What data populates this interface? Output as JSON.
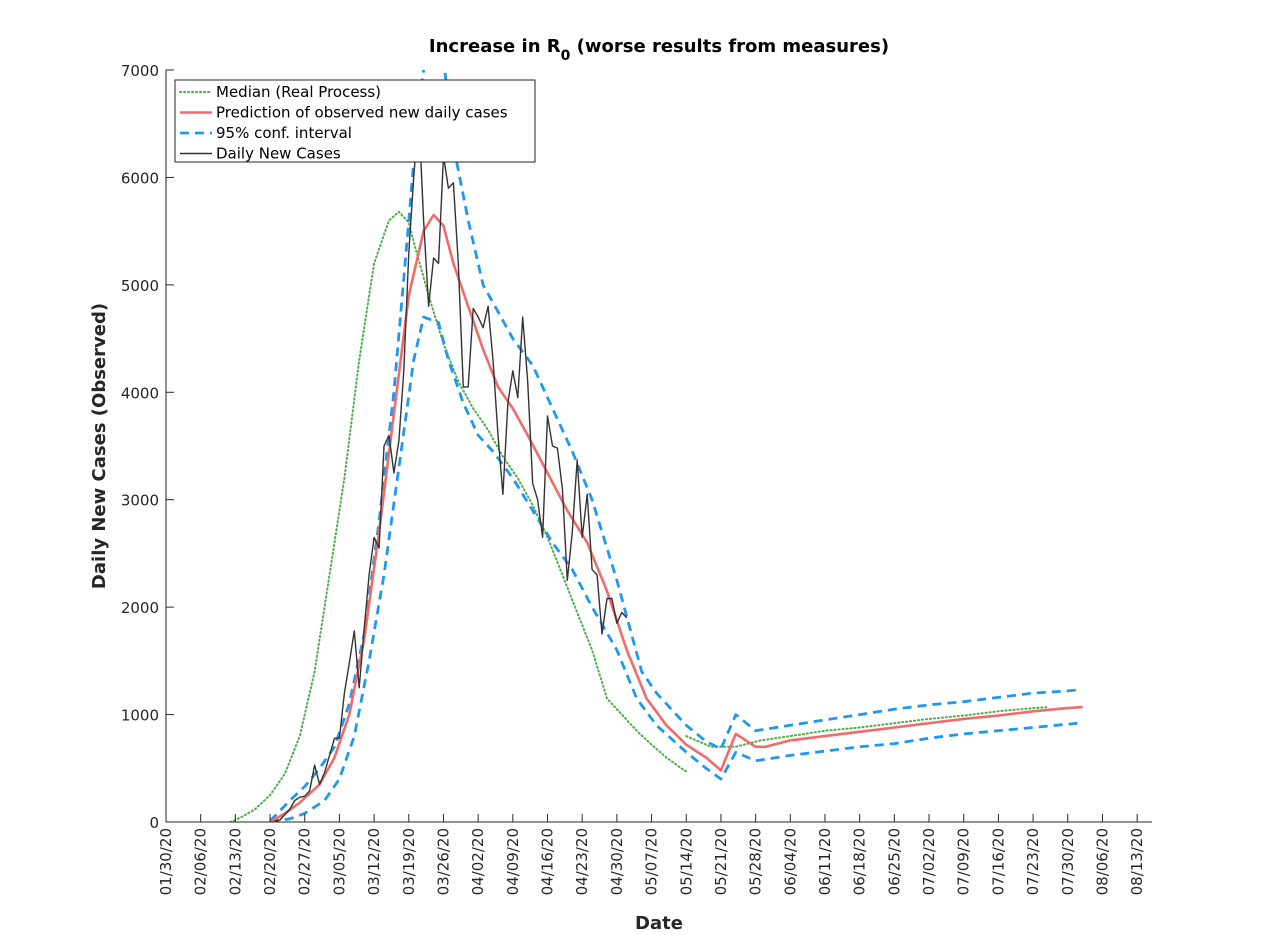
{
  "chart_data": {
    "type": "line",
    "title": {
      "main": "Increase in R",
      "subscript": "0",
      "rest": " (worse results from measures)"
    },
    "xlabel": "Date",
    "ylabel": "Daily New Cases (Observed)",
    "x_axis": {
      "start_date": "01/30/20",
      "end_date": "08/16/20",
      "tick_labels": [
        "01/30/20",
        "02/06/20",
        "02/13/20",
        "02/20/20",
        "02/27/20",
        "03/05/20",
        "03/12/20",
        "03/19/20",
        "03/26/20",
        "04/02/20",
        "04/09/20",
        "04/16/20",
        "04/23/20",
        "04/30/20",
        "05/07/20",
        "05/14/20",
        "05/21/20",
        "05/28/20",
        "06/04/20",
        "06/11/20",
        "06/18/20",
        "06/25/20",
        "07/02/20",
        "07/09/20",
        "07/16/20",
        "07/23/20",
        "07/30/20",
        "08/06/20",
        "08/13/20"
      ]
    },
    "y_axis": {
      "ylim": [
        0,
        7000
      ],
      "ticks": [
        0,
        1000,
        2000,
        3000,
        4000,
        5000,
        6000,
        7000
      ]
    },
    "grid": false,
    "legend": {
      "position": "top-left",
      "entries": [
        {
          "series": "median",
          "label": "Median (Real Process)"
        },
        {
          "series": "prediction",
          "label": "Prediction of observed new daily cases"
        },
        {
          "series": "ci",
          "label": "95% conf. interval"
        },
        {
          "series": "daily",
          "label": "Daily New Cases"
        }
      ]
    },
    "series": [
      {
        "id": "median",
        "name": "Median (Real Process)",
        "color": "#4daf4a",
        "style": "dotted",
        "points": [
          [
            "02/12/20",
            0
          ],
          [
            "02/14/20",
            40
          ],
          [
            "02/17/20",
            120
          ],
          [
            "02/20/20",
            250
          ],
          [
            "02/23/20",
            450
          ],
          [
            "02/26/20",
            800
          ],
          [
            "02/29/20",
            1400
          ],
          [
            "03/03/20",
            2300
          ],
          [
            "03/06/20",
            3200
          ],
          [
            "03/09/20",
            4300
          ],
          [
            "03/12/20",
            5200
          ],
          [
            "03/15/20",
            5600
          ],
          [
            "03/17/20",
            5680
          ],
          [
            "03/19/20",
            5580
          ],
          [
            "03/20/20",
            5400
          ],
          [
            "03/23/20",
            4900
          ],
          [
            "03/26/20",
            4450
          ],
          [
            "03/29/20",
            4100
          ],
          [
            "04/01/20",
            3850
          ],
          [
            "04/04/20",
            3650
          ],
          [
            "04/07/20",
            3400
          ],
          [
            "04/10/20",
            3200
          ],
          [
            "04/13/20",
            2950
          ],
          [
            "04/16/20",
            2650
          ],
          [
            "04/19/20",
            2300
          ],
          [
            "04/22/20",
            1950
          ],
          [
            "04/25/20",
            1600
          ],
          [
            "04/28/20",
            1150
          ],
          [
            "05/01/20",
            1000
          ],
          [
            "05/04/20",
            850
          ],
          [
            "05/07/20",
            720
          ],
          [
            "05/10/20",
            600
          ],
          [
            "05/13/20",
            500
          ],
          [
            "05/14/20",
            470
          ]
        ]
      },
      {
        "id": "median_late",
        "name": "Median (Real Process)",
        "color": "#4daf4a",
        "style": "dotted",
        "points": [
          [
            "05/14/20",
            800
          ],
          [
            "05/19/20",
            700
          ],
          [
            "05/24/20",
            700
          ],
          [
            "05/29/20",
            760
          ],
          [
            "06/04/20",
            800
          ],
          [
            "06/11/20",
            850
          ],
          [
            "06/18/20",
            880
          ],
          [
            "06/25/20",
            920
          ],
          [
            "07/02/20",
            960
          ],
          [
            "07/09/20",
            990
          ],
          [
            "07/16/20",
            1030
          ],
          [
            "07/23/20",
            1060
          ],
          [
            "07/26/20",
            1070
          ]
        ]
      },
      {
        "id": "ci_upper",
        "name": "95% conf. interval",
        "color": "#1f99f0",
        "style": "dashed",
        "points": [
          [
            "02/20/20",
            10
          ],
          [
            "02/24/20",
            200
          ],
          [
            "02/27/20",
            330
          ],
          [
            "03/01/20",
            500
          ],
          [
            "03/04/20",
            700
          ],
          [
            "03/07/20",
            1100
          ],
          [
            "03/10/20",
            1750
          ],
          [
            "03/13/20",
            2800
          ],
          [
            "03/16/20",
            4000
          ],
          [
            "03/19/20",
            5600
          ],
          [
            "03/21/20",
            6700
          ],
          [
            "03/23/20",
            7300
          ],
          [
            "03/26/20",
            7100
          ],
          [
            "03/28/20",
            6300
          ],
          [
            "03/31/20",
            5600
          ],
          [
            "04/03/20",
            5000
          ],
          [
            "04/06/20",
            4750
          ],
          [
            "04/09/20",
            4500
          ],
          [
            "04/13/20",
            4250
          ],
          [
            "04/17/20",
            3850
          ],
          [
            "04/21/20",
            3450
          ],
          [
            "04/25/20",
            3000
          ],
          [
            "04/30/20",
            2250
          ],
          [
            "05/05/20",
            1400
          ],
          [
            "05/08/20",
            1200
          ],
          [
            "05/14/20",
            900
          ],
          [
            "05/18/20",
            750
          ],
          [
            "05/21/20",
            680
          ],
          [
            "05/24/20",
            1000
          ],
          [
            "05/28/20",
            850
          ],
          [
            "06/04/20",
            900
          ],
          [
            "06/11/20",
            950
          ],
          [
            "06/18/20",
            1000
          ],
          [
            "06/25/20",
            1050
          ],
          [
            "07/02/20",
            1090
          ],
          [
            "07/09/20",
            1120
          ],
          [
            "07/16/20",
            1160
          ],
          [
            "07/23/20",
            1200
          ],
          [
            "07/30/20",
            1220
          ],
          [
            "08/01/20",
            1230
          ]
        ]
      },
      {
        "id": "ci_lower",
        "name": "95% conf. interval",
        "color": "#1f99f0",
        "style": "dashed",
        "points": [
          [
            "02/20/20",
            0
          ],
          [
            "02/24/20",
            30
          ],
          [
            "02/27/20",
            80
          ],
          [
            "03/02/20",
            200
          ],
          [
            "03/05/20",
            400
          ],
          [
            "03/08/20",
            800
          ],
          [
            "03/11/20",
            1500
          ],
          [
            "03/14/20",
            2300
          ],
          [
            "03/17/20",
            3300
          ],
          [
            "03/20/20",
            4300
          ],
          [
            "03/22/20",
            4700
          ],
          [
            "03/25/20",
            4650
          ],
          [
            "03/27/20",
            4300
          ],
          [
            "03/30/20",
            3900
          ],
          [
            "04/02/20",
            3600
          ],
          [
            "04/05/20",
            3450
          ],
          [
            "04/09/20",
            3200
          ],
          [
            "04/13/20",
            2900
          ],
          [
            "04/17/20",
            2600
          ],
          [
            "04/21/20",
            2350
          ],
          [
            "04/25/20",
            2000
          ],
          [
            "04/30/20",
            1600
          ],
          [
            "05/04/20",
            1150
          ],
          [
            "05/08/20",
            900
          ],
          [
            "05/14/20",
            650
          ],
          [
            "05/18/20",
            500
          ],
          [
            "05/21/20",
            400
          ],
          [
            "05/24/20",
            650
          ],
          [
            "05/28/20",
            570
          ],
          [
            "06/04/20",
            620
          ],
          [
            "06/11/20",
            660
          ],
          [
            "06/18/20",
            700
          ],
          [
            "06/25/20",
            730
          ],
          [
            "07/02/20",
            780
          ],
          [
            "07/09/20",
            820
          ],
          [
            "07/16/20",
            850
          ],
          [
            "07/23/20",
            880
          ],
          [
            "07/30/20",
            910
          ],
          [
            "08/01/20",
            920
          ]
        ]
      },
      {
        "id": "prediction",
        "name": "Prediction of observed new daily cases",
        "color": "#f26b6b",
        "style": "solid",
        "points": [
          [
            "02/20/20",
            0
          ],
          [
            "02/23/20",
            80
          ],
          [
            "02/26/20",
            180
          ],
          [
            "03/01/20",
            350
          ],
          [
            "03/04/20",
            600
          ],
          [
            "03/07/20",
            1000
          ],
          [
            "03/10/20",
            1700
          ],
          [
            "03/13/20",
            2700
          ],
          [
            "03/16/20",
            3800
          ],
          [
            "03/19/20",
            4900
          ],
          [
            "03/22/20",
            5500
          ],
          [
            "03/24/20",
            5650
          ],
          [
            "03/26/20",
            5550
          ],
          [
            "03/28/20",
            5200
          ],
          [
            "03/31/20",
            4800
          ],
          [
            "04/03/20",
            4400
          ],
          [
            "04/06/20",
            4050
          ],
          [
            "04/09/20",
            3850
          ],
          [
            "04/12/20",
            3600
          ],
          [
            "04/16/20",
            3250
          ],
          [
            "04/20/20",
            2900
          ],
          [
            "04/24/20",
            2600
          ],
          [
            "04/28/20",
            2150
          ],
          [
            "05/02/20",
            1600
          ],
          [
            "05/06/20",
            1150
          ],
          [
            "05/10/20",
            900
          ],
          [
            "05/14/20",
            720
          ],
          [
            "05/18/20",
            600
          ],
          [
            "05/21/20",
            480
          ],
          [
            "05/24/20",
            820
          ],
          [
            "05/28/20",
            700
          ],
          [
            "05/30/20",
            700
          ],
          [
            "06/04/20",
            760
          ],
          [
            "06/11/20",
            800
          ],
          [
            "06/18/20",
            840
          ],
          [
            "06/25/20",
            880
          ],
          [
            "07/02/20",
            920
          ],
          [
            "07/09/20",
            960
          ],
          [
            "07/16/20",
            990
          ],
          [
            "07/23/20",
            1030
          ],
          [
            "07/30/20",
            1060
          ],
          [
            "08/02/20",
            1070
          ]
        ]
      },
      {
        "id": "daily",
        "name": "Daily New Cases",
        "color": "#333333",
        "style": "solid",
        "points": [
          [
            "02/21/20",
            10
          ],
          [
            "02/22/20",
            20
          ],
          [
            "02/23/20",
            70
          ],
          [
            "02/24/20",
            120
          ],
          [
            "02/25/20",
            200
          ],
          [
            "02/26/20",
            230
          ],
          [
            "02/27/20",
            240
          ],
          [
            "02/28/20",
            290
          ],
          [
            "02/29/20",
            530
          ],
          [
            "03/01/20",
            350
          ],
          [
            "03/02/20",
            460
          ],
          [
            "03/03/20",
            620
          ],
          [
            "03/04/20",
            780
          ],
          [
            "03/05/20",
            780
          ],
          [
            "03/06/20",
            1200
          ],
          [
            "03/07/20",
            1480
          ],
          [
            "03/08/20",
            1780
          ],
          [
            "03/09/20",
            1250
          ],
          [
            "03/10/20",
            1800
          ],
          [
            "03/11/20",
            2300
          ],
          [
            "03/12/20",
            2650
          ],
          [
            "03/13/20",
            2550
          ],
          [
            "03/14/20",
            3500
          ],
          [
            "03/15/20",
            3600
          ],
          [
            "03/16/20",
            3250
          ],
          [
            "03/17/20",
            3550
          ],
          [
            "03/18/20",
            4200
          ],
          [
            "03/19/20",
            5300
          ],
          [
            "03/20/20",
            6000
          ],
          [
            "03/21/20",
            6600
          ],
          [
            "03/22/20",
            5600
          ],
          [
            "03/23/20",
            4800
          ],
          [
            "03/24/20",
            5250
          ],
          [
            "03/25/20",
            5200
          ],
          [
            "03/26/20",
            6200
          ],
          [
            "03/27/20",
            5900
          ],
          [
            "03/28/20",
            5950
          ],
          [
            "03/29/20",
            5200
          ],
          [
            "03/30/20",
            4050
          ],
          [
            "03/31/20",
            4050
          ],
          [
            "04/01/20",
            4780
          ],
          [
            "04/02/20",
            4700
          ],
          [
            "04/03/20",
            4600
          ],
          [
            "04/04/20",
            4800
          ],
          [
            "04/05/20",
            4300
          ],
          [
            "04/06/20",
            3600
          ],
          [
            "04/07/20",
            3050
          ],
          [
            "04/08/20",
            3900
          ],
          [
            "04/09/20",
            4200
          ],
          [
            "04/10/20",
            3950
          ],
          [
            "04/11/20",
            4700
          ],
          [
            "04/12/20",
            4100
          ],
          [
            "04/13/20",
            3150
          ],
          [
            "04/14/20",
            3000
          ],
          [
            "04/15/20",
            2650
          ],
          [
            "04/16/20",
            3780
          ],
          [
            "04/17/20",
            3500
          ],
          [
            "04/18/20",
            3480
          ],
          [
            "04/19/20",
            3100
          ],
          [
            "04/20/20",
            2250
          ],
          [
            "04/21/20",
            2700
          ],
          [
            "04/22/20",
            3370
          ],
          [
            "04/23/20",
            2650
          ],
          [
            "04/24/20",
            3050
          ],
          [
            "04/25/20",
            2350
          ],
          [
            "04/26/20",
            2300
          ],
          [
            "04/27/20",
            1750
          ],
          [
            "04/28/20",
            2080
          ],
          [
            "04/29/20",
            2080
          ],
          [
            "04/30/20",
            1850
          ],
          [
            "05/01/20",
            1950
          ],
          [
            "05/02/20",
            1900
          ]
        ]
      }
    ]
  }
}
